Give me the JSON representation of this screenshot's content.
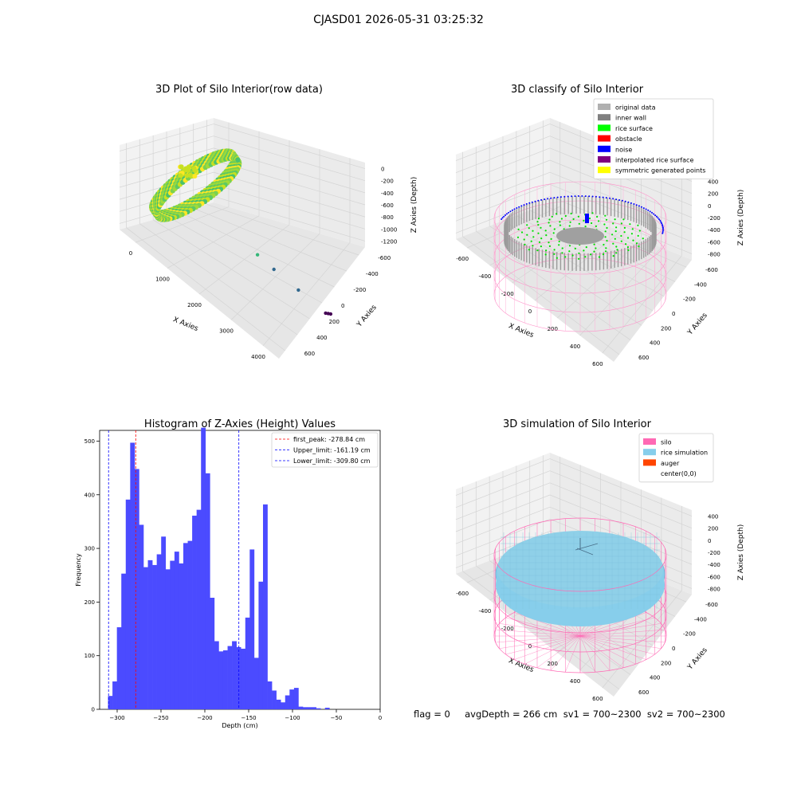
{
  "suptitle": "CJASD01 2026-05-31 03:25:32",
  "footer": "flag = 0     avgDepth = 266 cm  sv1 = 700~2300  sv2 = 700~2300",
  "colors": {
    "hist": "#4b4bff",
    "peak_line": "#ff0000",
    "limit_line": "#0000ff",
    "silo": "#ff69b4",
    "rice_sim": "#87ceeb",
    "auger": "#ff4500",
    "wall_gray": "#a0a0a0",
    "rice_green": "#00ee00"
  },
  "chart_data": [
    {
      "type": "scatter",
      "title": "3D Plot of Silo Interior(row data)",
      "xlabel": "X Axies",
      "ylabel": "Y Axies",
      "zlabel": "Z Axies (Depth)",
      "x_ticks": [
        "0",
        "1000",
        "2000",
        "3000",
        "4000"
      ],
      "y_ticks": [
        "-600",
        "-400",
        "-200",
        "0",
        "200",
        "400",
        "600"
      ],
      "z_ticks": [
        "0",
        "-200",
        "-400",
        "-600",
        "-800",
        "-1000",
        "-1200"
      ],
      "colormap": "viridis",
      "outlier_points": [
        {
          "x": 2000,
          "y": 100,
          "z": -800
        },
        {
          "x": 2500,
          "y": 50,
          "z": -900
        },
        {
          "x": 3200,
          "y": -80,
          "z": -1050
        },
        {
          "x": 4000,
          "y": -200,
          "z": -1200
        },
        {
          "x": 4000,
          "y": -300,
          "z": -1220
        },
        {
          "x": 4000,
          "y": -400,
          "z": -1240
        }
      ]
    },
    {
      "type": "scatter",
      "title": "3D classify of Silo Interior",
      "xlabel": "X Axies",
      "ylabel": "Y Axies",
      "zlabel": "Z Axies (Depth)",
      "x_ticks": [
        "-600",
        "-400",
        "-200",
        "0",
        "200",
        "400",
        "600"
      ],
      "y_ticks": [
        "-600",
        "-400",
        "-200",
        "0",
        "200",
        "400",
        "600"
      ],
      "z_ticks": [
        "400",
        "200",
        "0",
        "-200",
        "-400",
        "-600",
        "-800"
      ],
      "legend": [
        {
          "label": "original data",
          "color": "#b0b0b0"
        },
        {
          "label": "inner wall",
          "color": "#808080"
        },
        {
          "label": "rice surface",
          "color": "#00ff00"
        },
        {
          "label": "obstacle",
          "color": "#ff0000"
        },
        {
          "label": "noise",
          "color": "#0000ff"
        },
        {
          "label": "interpolated rice surface",
          "color": "#800080"
        },
        {
          "label": "symmetric generated points",
          "color": "#ffff00"
        }
      ],
      "legend_loc": "upper right"
    },
    {
      "type": "bar",
      "title": "Histogram of Z-Axies (Height) Values",
      "xlabel": "Depth (cm)",
      "ylabel": "Frequency",
      "xlim": [
        -320,
        0
      ],
      "ylim": [
        0,
        520
      ],
      "x_ticks": [
        -300,
        -250,
        -200,
        -150,
        -100,
        -50,
        0
      ],
      "y_ticks": [
        0,
        100,
        200,
        300,
        400,
        500
      ],
      "bin_start": -310.4,
      "bin_width": 5.05,
      "values": [
        25,
        52,
        153,
        253,
        391,
        497,
        448,
        344,
        265,
        278,
        269,
        289,
        322,
        261,
        277,
        294,
        272,
        310,
        314,
        361,
        372,
        525,
        440,
        208,
        127,
        108,
        110,
        118,
        127,
        116,
        113,
        171,
        298,
        96,
        238,
        382,
        52,
        35,
        18,
        13,
        26,
        37,
        40,
        5,
        4,
        4,
        4,
        2,
        0,
        3
      ],
      "vlines": [
        {
          "x": -278.84,
          "kind": "peak",
          "label": "first_peak: -278.84 cm"
        },
        {
          "x": -161.19,
          "kind": "limit",
          "label": "Upper_limit: -161.19 cm"
        },
        {
          "x": -309.8,
          "kind": "limit",
          "label": "Lower_limit: -309.80 cm"
        }
      ]
    },
    {
      "type": "scatter",
      "title": "3D simulation of Silo Interior",
      "xlabel": "X Axies",
      "ylabel": "Y Axies",
      "zlabel": "Z Axies (Depth)",
      "x_ticks": [
        "-600",
        "-400",
        "-200",
        "0",
        "200",
        "400",
        "600"
      ],
      "y_ticks": [
        "-600",
        "-400",
        "-200",
        "0",
        "200",
        "400",
        "600"
      ],
      "z_ticks": [
        "400",
        "200",
        "0",
        "-200",
        "-400",
        "-600",
        "-800"
      ],
      "legend": [
        {
          "label": "silo",
          "color": "#ff69b4"
        },
        {
          "label": "rice simulation",
          "color": "#87ceeb"
        },
        {
          "label": "auger",
          "color": "#ff4500"
        },
        {
          "label": "center(0,0)",
          "color": "none"
        }
      ],
      "legend_loc": "upper right"
    }
  ]
}
